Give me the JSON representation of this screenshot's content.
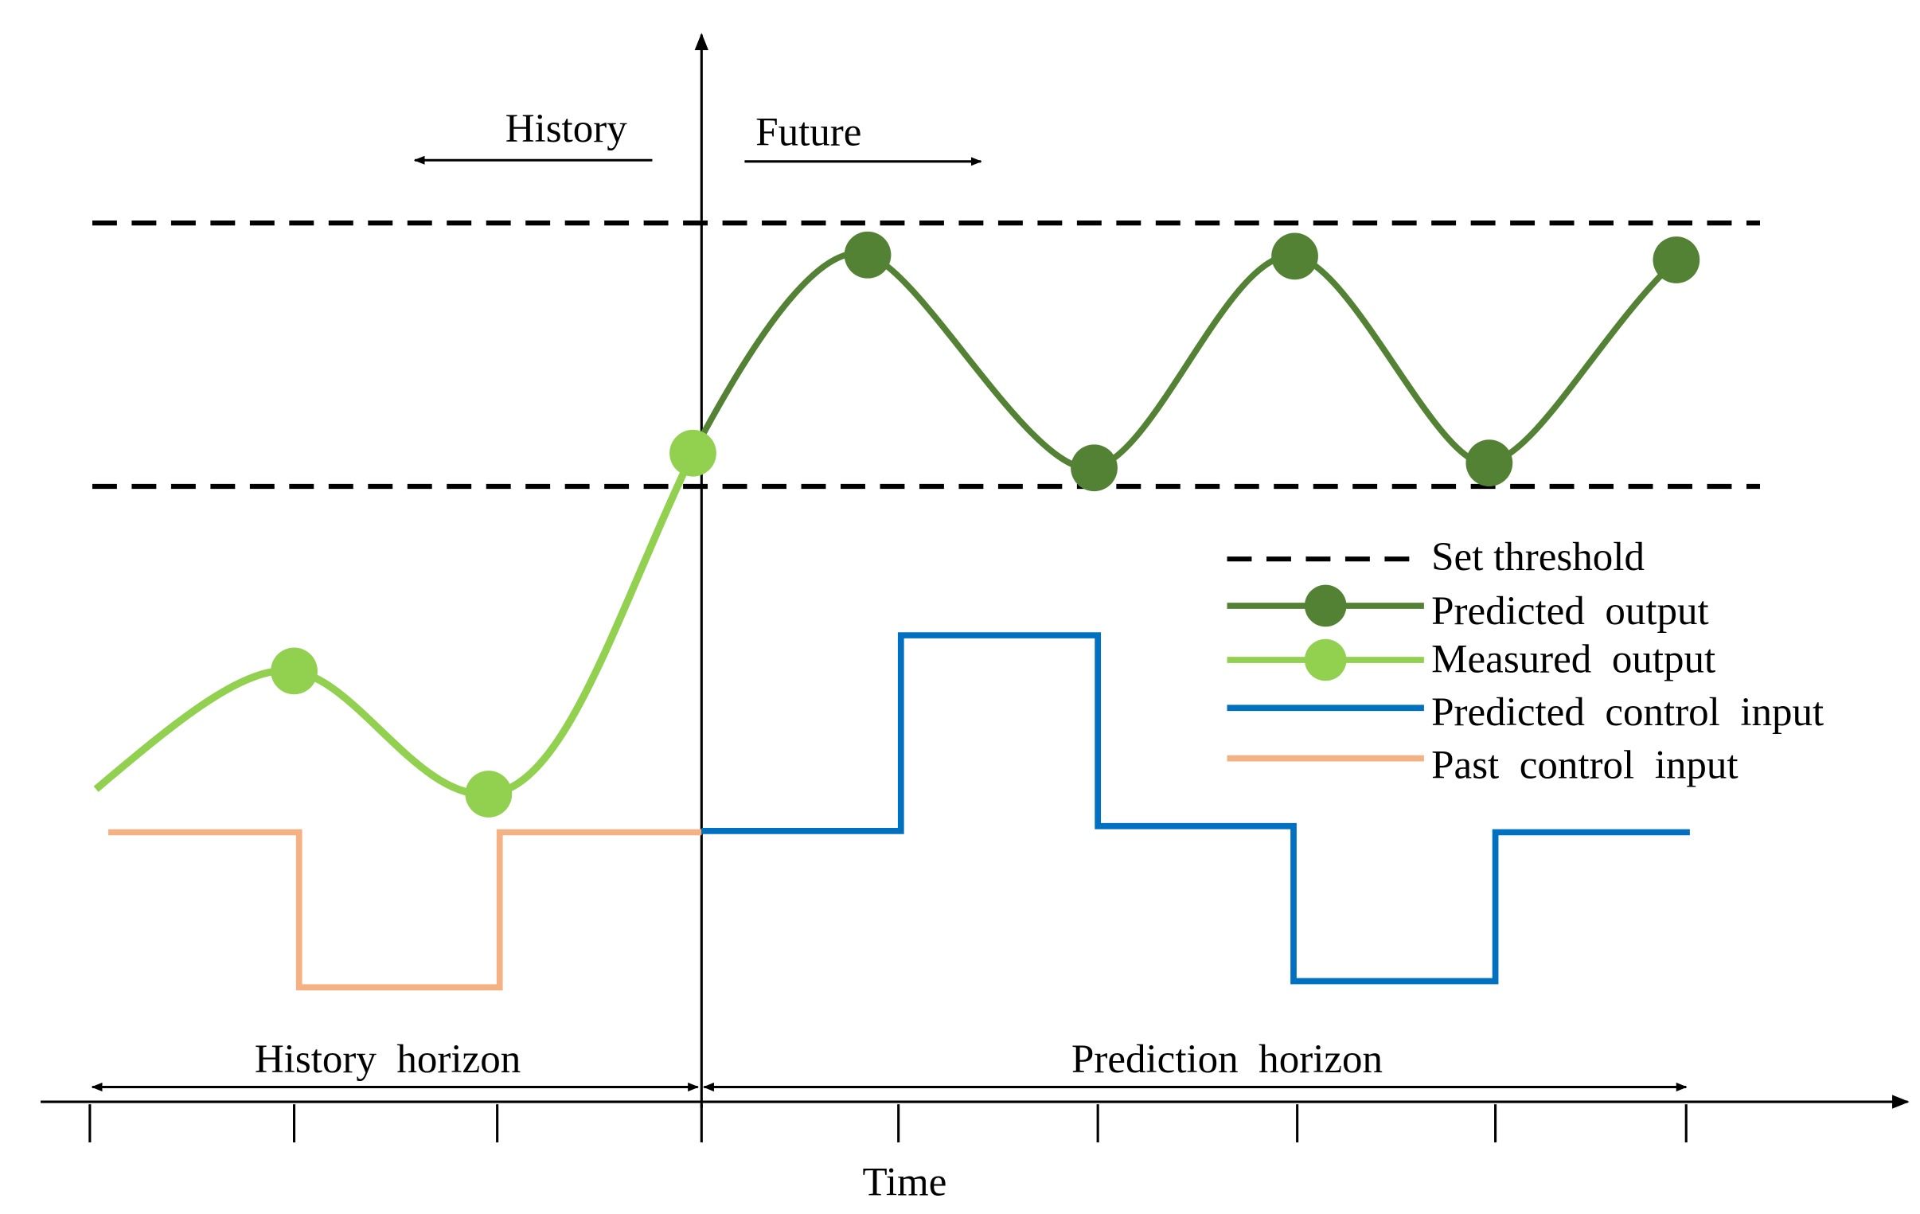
{
  "labels": {
    "history": "History",
    "future": "Future",
    "history_horizon": "History  horizon",
    "prediction_horizon": "Prediction  horizon",
    "time": "Time"
  },
  "legend": [
    {
      "label": "Set threshold"
    },
    {
      "label": "Predicted  output"
    },
    {
      "label": "Measured  output"
    },
    {
      "label": "Predicted  control  input"
    },
    {
      "label": "Past  control  input"
    }
  ]
}
